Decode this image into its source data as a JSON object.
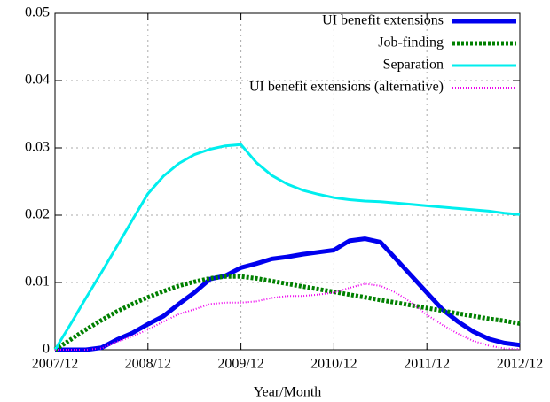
{
  "chart_data": {
    "type": "line",
    "x_label": "Year/Month",
    "x": [
      "2007/12",
      "2008/02",
      "2008/04",
      "2008/06",
      "2008/08",
      "2008/10",
      "2008/12",
      "2009/02",
      "2009/04",
      "2009/06",
      "2009/08",
      "2009/10",
      "2009/12",
      "2010/02",
      "2010/04",
      "2010/06",
      "2010/08",
      "2010/10",
      "2010/12",
      "2011/02",
      "2011/04",
      "2011/06",
      "2011/08",
      "2011/10",
      "2011/12",
      "2012/02",
      "2012/04",
      "2012/06",
      "2012/08",
      "2012/10",
      "2012/12"
    ],
    "xlim": [
      "2007/12",
      "2012/12"
    ],
    "xticks": [
      "2007/12",
      "2008/12",
      "2009/12",
      "2010/12",
      "2011/12",
      "2012/12"
    ],
    "ylim": [
      0,
      0.05
    ],
    "yticks": [
      0,
      0.01,
      0.02,
      0.03,
      0.04,
      0.05
    ],
    "grid": true,
    "legend": "top-right",
    "series": [
      {
        "name": "UI benefit extensions",
        "color": "#0000ee",
        "values": [
          0,
          0,
          0,
          0.0003,
          0.0015,
          0.0025,
          0.0038,
          0.005,
          0.0068,
          0.0085,
          0.0105,
          0.011,
          0.0122,
          0.0128,
          0.0135,
          0.0138,
          0.0142,
          0.0145,
          0.0148,
          0.0162,
          0.0165,
          0.016,
          0.0135,
          0.011,
          0.0085,
          0.006,
          0.0042,
          0.0027,
          0.0016,
          0.001,
          0.0007
        ]
      },
      {
        "name": "Job-finding",
        "color": "#008000",
        "values": [
          0,
          0.0015,
          0.003,
          0.0044,
          0.0057,
          0.0068,
          0.0078,
          0.0087,
          0.0095,
          0.0101,
          0.0106,
          0.0109,
          0.0109,
          0.0106,
          0.0102,
          0.0098,
          0.0094,
          0.009,
          0.0086,
          0.0082,
          0.0078,
          0.0074,
          0.007,
          0.0066,
          0.0062,
          0.0058,
          0.0054,
          0.005,
          0.0046,
          0.0043,
          0.0039
        ]
      },
      {
        "name": "Separation",
        "color": "#00eeee",
        "values": [
          0,
          0.0038,
          0.0077,
          0.0115,
          0.0154,
          0.0193,
          0.0232,
          0.0258,
          0.0277,
          0.029,
          0.0298,
          0.0303,
          0.0305,
          0.0278,
          0.0259,
          0.0246,
          0.0237,
          0.0231,
          0.0226,
          0.0223,
          0.0221,
          0.022,
          0.0218,
          0.0216,
          0.0214,
          0.0212,
          0.021,
          0.0208,
          0.0206,
          0.0203,
          0.0201
        ]
      },
      {
        "name": "UI benefit extensions (alternative)",
        "color": "#ee00ee",
        "values": [
          0,
          0,
          0,
          0.0002,
          0.0012,
          0.002,
          0.003,
          0.0042,
          0.0053,
          0.006,
          0.0068,
          0.007,
          0.007,
          0.0072,
          0.0077,
          0.008,
          0.008,
          0.0082,
          0.0085,
          0.0092,
          0.0098,
          0.0095,
          0.0085,
          0.007,
          0.0052,
          0.0037,
          0.0024,
          0.0013,
          0.0006,
          0.0002,
          0.0001
        ]
      }
    ]
  }
}
